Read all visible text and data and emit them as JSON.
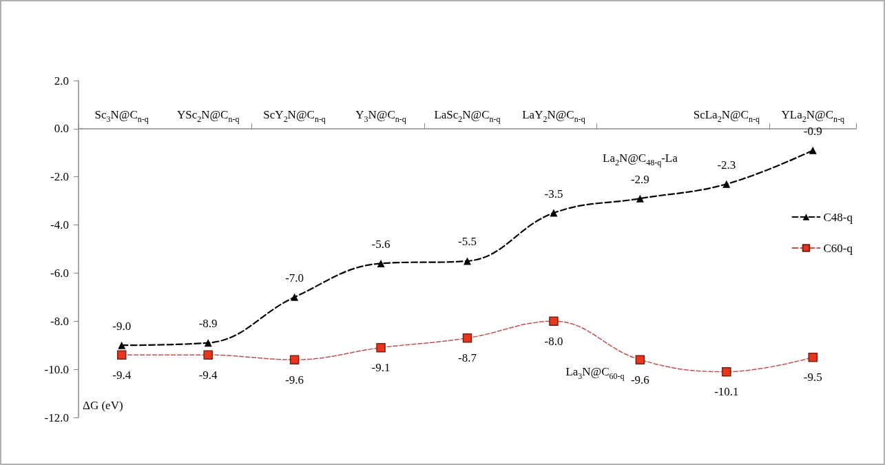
{
  "chart_data": {
    "type": "line",
    "categories": [
      "Sc$_{3}$N@C$_{n-q}$",
      "YSc$_{2}$N@C$_{n-q}$",
      "ScY$_{2}$N@C$_{n-q}$",
      "Y$_{3}$N@C$_{n-q}$",
      "LaSc$_{2}$N@C$_{n-q}$",
      "LaY$_{2}$N@C$_{n-q}$",
      null,
      "ScLa$_{2}$N@C$_{n-q}$",
      "YLa$_{2}$N@C$_{n-q}$"
    ],
    "series": [
      {
        "name": "C48-q",
        "color": "#000000",
        "marker": "triangle",
        "line_style": "dashed",
        "values": [
          -9.0,
          -8.9,
          -7.0,
          -5.6,
          -5.5,
          -3.5,
          -2.9,
          -2.3,
          -0.9
        ],
        "value_labels": [
          "-9.0",
          "-8.9",
          "-7.0",
          "-5.6",
          "-5.5",
          "-3.5",
          "-2.9",
          "-2.3",
          "-0.9"
        ]
      },
      {
        "name": "C60-q",
        "color": "#e8361e",
        "marker": "square",
        "line_style": "dashed",
        "values": [
          -9.4,
          -9.4,
          -9.6,
          -9.1,
          -8.7,
          -8.0,
          -9.6,
          -10.1,
          -9.5
        ],
        "value_labels": [
          "-9.4",
          "-9.4",
          "-9.6",
          "-9.1",
          "-8.7",
          "-8.0",
          "-9.6",
          "-10.1",
          "-9.5"
        ]
      }
    ],
    "ylabel": "ΔG (eV)",
    "ylim": [
      -12,
      2
    ],
    "yticks": [
      {
        "value": -12,
        "label": "-12.0"
      },
      {
        "value": -10,
        "label": "-10.0"
      },
      {
        "value": -8,
        "label": "-8.0"
      },
      {
        "value": -6,
        "label": "-6.0"
      },
      {
        "value": -4,
        "label": "-4.0"
      },
      {
        "value": -2,
        "label": "-2.0"
      },
      {
        "value": 0,
        "label": "0.0"
      },
      {
        "value": 2,
        "label": "2.0"
      }
    ],
    "annotations": [
      "La$_{2}$N@C$_{48-q}$-La",
      "La$_{3}$N@C$_{60-q}$"
    ],
    "legend": "right",
    "grid": false
  }
}
